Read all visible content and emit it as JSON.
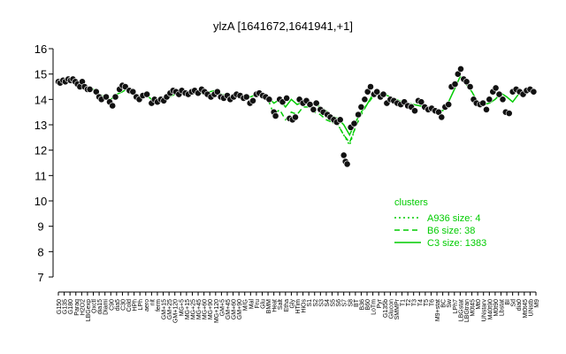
{
  "chart_data": {
    "type": "scatter",
    "title": "ylzA [1641672,1641941,+1]",
    "ylim": [
      7,
      16
    ],
    "yticks": [
      7,
      8,
      9,
      10,
      11,
      12,
      13,
      14,
      15,
      16
    ],
    "grid": false,
    "legend": {
      "title": "clusters",
      "placement": "right",
      "entries": [
        {
          "label": "A936 size: 4",
          "style": "dotted",
          "color": "#00cc00"
        },
        {
          "label": "B6 size: 38",
          "style": "dashed",
          "color": "#00cc00"
        },
        {
          "label": "C3 size: 1383",
          "style": "solid",
          "color": "#00cc00"
        }
      ]
    },
    "x_labels": [
      "G150",
      "G135",
      "G180",
      "Paraq",
      "H2O2",
      "LBGexp",
      "Oxctl",
      "dia15",
      "Diami",
      "C90",
      "dia5",
      "C30",
      "Cold",
      "HPh",
      "LPh",
      "aero",
      "nit",
      "ferm",
      "GM+15",
      "GM+25",
      "GM+120",
      "MG+5",
      "MG+15",
      "MG+25",
      "MG+45",
      "MG+60",
      "MG+90",
      "MG+120",
      "GM+5",
      "GM+45",
      "GM+60",
      "GM+90",
      "M/G",
      "Mal",
      "Fru",
      "Glu",
      "BMM",
      "Heat",
      "Salt",
      "Etha",
      "Gly",
      "HTim",
      "HiOs",
      "S1",
      "S2",
      "S3",
      "S4",
      "S5",
      "S6",
      "S7",
      "S8",
      "BT",
      "B36",
      "B60",
      "LoTm",
      "Pyr",
      "G135b",
      "Glucon",
      "SMMPr",
      "T1",
      "T2",
      "T3",
      "T4",
      "T5",
      "T6",
      "M9+stat",
      "BC",
      "Sw",
      "LPh7",
      "LBGstat",
      "LBGtran",
      "M0t45",
      "Mt0",
      "UNstarv",
      "M40t90",
      "M0t90",
      "Lbstat",
      "BI",
      "Sd",
      "dia0",
      "Mt0t45",
      "UNstb",
      "M9"
    ],
    "series": [
      {
        "cluster": "C3",
        "x": [
          0,
          1,
          2,
          3,
          4,
          5,
          6,
          7,
          8,
          9,
          10,
          11,
          12,
          13,
          14,
          15,
          16,
          17,
          18,
          19,
          20,
          21,
          22,
          23,
          24,
          25,
          26,
          27,
          28,
          29,
          30,
          31,
          32,
          33,
          34,
          35,
          36,
          37,
          38,
          39,
          40,
          41,
          42,
          43,
          44,
          45,
          46,
          47,
          48,
          49,
          50,
          51,
          52,
          53,
          54,
          55,
          56,
          57,
          58,
          59,
          60,
          61,
          62,
          63,
          64,
          65,
          66,
          67,
          68,
          69,
          70,
          71,
          72,
          73,
          74,
          75,
          76,
          77,
          78,
          79,
          80,
          81,
          82
        ],
        "y": [
          14.7,
          14.7,
          14.8,
          14.75,
          14.6,
          14.5,
          14.4,
          14.2,
          14.1,
          14.0,
          14.2,
          14.3,
          14.45,
          14.2,
          14.1,
          14.2,
          14.0,
          13.9,
          14.0,
          14.1,
          14.2,
          14.25,
          14.3,
          14.2,
          14.3,
          14.2,
          14.3,
          14.35,
          14.2,
          14.15,
          14.1,
          14.2,
          14.15,
          14.1,
          14.2,
          14.2,
          14.1,
          13.85,
          14.0,
          13.7,
          14.0,
          13.8,
          13.9,
          13.9,
          13.8,
          13.7,
          13.55,
          13.35,
          13.25,
          13.0,
          12.6,
          13.1,
          13.5,
          13.8,
          14.2,
          14.25,
          14.2,
          14.1,
          14.0,
          13.9,
          13.85,
          13.8,
          13.75,
          13.7,
          13.7,
          13.6,
          13.55,
          13.9,
          14.4,
          14.9,
          14.6,
          14.3,
          13.9,
          13.8,
          13.85,
          14.0,
          14.25,
          14.1,
          13.9,
          14.2,
          14.3,
          14.3,
          14.35
        ]
      },
      {
        "cluster": "B6",
        "x": [
          36,
          37,
          38,
          39,
          40,
          41,
          42,
          43,
          44,
          45,
          46,
          47,
          48,
          49,
          50,
          51,
          52,
          53,
          54
        ],
        "y": [
          14.0,
          13.4,
          13.6,
          13.2,
          13.5,
          13.4,
          13.7,
          13.7,
          13.5,
          13.4,
          13.2,
          13.1,
          13.0,
          12.6,
          12.3,
          12.9,
          13.4,
          13.8,
          14.1
        ]
      },
      {
        "cluster": "A936",
        "x": [
          47,
          48,
          49,
          50,
          51
        ],
        "y": [
          13.1,
          13.0,
          12.6,
          12.2,
          12.9
        ]
      }
    ],
    "points": [
      [
        0,
        14.7
      ],
      [
        0.3,
        14.65
      ],
      [
        0.8,
        14.75
      ],
      [
        1.2,
        14.7
      ],
      [
        1.7,
        14.8
      ],
      [
        2.1,
        14.75
      ],
      [
        2.5,
        14.8
      ],
      [
        2.9,
        14.7
      ],
      [
        3.3,
        14.6
      ],
      [
        3.7,
        14.5
      ],
      [
        4.1,
        14.7
      ],
      [
        4.5,
        14.5
      ],
      [
        5.0,
        14.4
      ],
      [
        5.4,
        14.4
      ],
      [
        6.5,
        14.3
      ],
      [
        7.0,
        14.1
      ],
      [
        7.4,
        14.0
      ],
      [
        8.2,
        14.1
      ],
      [
        8.8,
        13.9
      ],
      [
        9.3,
        13.75
      ],
      [
        9.8,
        14.1
      ],
      [
        10.5,
        14.4
      ],
      [
        11.0,
        14.55
      ],
      [
        11.5,
        14.5
      ],
      [
        12.2,
        14.35
      ],
      [
        12.8,
        14.3
      ],
      [
        13.4,
        14.1
      ],
      [
        13.9,
        14.0
      ],
      [
        14.5,
        14.15
      ],
      [
        15.2,
        14.2
      ],
      [
        16.0,
        13.85
      ],
      [
        16.5,
        14.0
      ],
      [
        17.0,
        13.9
      ],
      [
        17.6,
        14.0
      ],
      [
        18.1,
        13.95
      ],
      [
        18.6,
        14.1
      ],
      [
        19.2,
        14.25
      ],
      [
        19.7,
        14.35
      ],
      [
        20.2,
        14.3
      ],
      [
        20.7,
        14.2
      ],
      [
        21.2,
        14.35
      ],
      [
        21.8,
        14.25
      ],
      [
        22.3,
        14.2
      ],
      [
        22.9,
        14.3
      ],
      [
        23.4,
        14.35
      ],
      [
        24.0,
        14.25
      ],
      [
        24.6,
        14.4
      ],
      [
        25.1,
        14.3
      ],
      [
        25.6,
        14.2
      ],
      [
        26.2,
        14.1
      ],
      [
        26.8,
        14.2
      ],
      [
        27.3,
        14.3
      ],
      [
        27.9,
        14.1
      ],
      [
        28.4,
        14.05
      ],
      [
        29.0,
        14.15
      ],
      [
        29.5,
        14.0
      ],
      [
        30.1,
        14.1
      ],
      [
        30.6,
        14.2
      ],
      [
        31.2,
        14.15
      ],
      [
        31.8,
        14.05
      ],
      [
        32.3,
        14.1
      ],
      [
        32.9,
        13.85
      ],
      [
        33.4,
        13.95
      ],
      [
        34.0,
        14.2
      ],
      [
        34.5,
        14.25
      ],
      [
        35.1,
        14.15
      ],
      [
        35.6,
        14.1
      ],
      [
        36.2,
        14.0
      ],
      [
        37.0,
        13.5
      ],
      [
        37.3,
        13.35
      ],
      [
        38.0,
        14.0
      ],
      [
        38.5,
        13.9
      ],
      [
        39.2,
        14.05
      ],
      [
        39.7,
        13.25
      ],
      [
        40.2,
        13.2
      ],
      [
        40.7,
        13.3
      ],
      [
        41.4,
        14.0
      ],
      [
        42.0,
        13.85
      ],
      [
        42.6,
        13.95
      ],
      [
        43.2,
        13.8
      ],
      [
        43.8,
        13.6
      ],
      [
        44.3,
        13.85
      ],
      [
        45.0,
        13.6
      ],
      [
        45.5,
        13.5
      ],
      [
        46.2,
        13.4
      ],
      [
        46.7,
        13.3
      ],
      [
        47.3,
        13.2
      ],
      [
        47.8,
        13.1
      ],
      [
        48.4,
        13.2
      ],
      [
        49.0,
        11.8
      ],
      [
        49.3,
        11.55
      ],
      [
        49.6,
        11.45
      ],
      [
        50.2,
        12.9
      ],
      [
        50.8,
        13.05
      ],
      [
        51.5,
        13.4
      ],
      [
        52.0,
        13.7
      ],
      [
        52.6,
        14.0
      ],
      [
        53.1,
        14.3
      ],
      [
        53.6,
        14.5
      ],
      [
        54.2,
        14.2
      ],
      [
        54.7,
        14.3
      ],
      [
        55.3,
        14.1
      ],
      [
        55.8,
        14.2
      ],
      [
        56.4,
        13.85
      ],
      [
        57.0,
        14.0
      ],
      [
        57.6,
        13.95
      ],
      [
        58.2,
        13.85
      ],
      [
        58.8,
        13.8
      ],
      [
        59.4,
        13.9
      ],
      [
        60.0,
        13.75
      ],
      [
        60.6,
        13.7
      ],
      [
        61.2,
        13.55
      ],
      [
        61.8,
        13.95
      ],
      [
        62.3,
        13.9
      ],
      [
        62.9,
        13.7
      ],
      [
        63.5,
        13.6
      ],
      [
        64.1,
        13.65
      ],
      [
        64.7,
        13.55
      ],
      [
        65.3,
        13.5
      ],
      [
        65.8,
        13.3
      ],
      [
        66.4,
        13.7
      ],
      [
        67.0,
        13.8
      ],
      [
        67.5,
        14.5
      ],
      [
        68.1,
        14.6
      ],
      [
        68.6,
        15.0
      ],
      [
        69.1,
        15.2
      ],
      [
        69.6,
        14.8
      ],
      [
        70.1,
        14.7
      ],
      [
        70.7,
        14.5
      ],
      [
        71.3,
        14.0
      ],
      [
        71.8,
        13.85
      ],
      [
        72.4,
        13.8
      ],
      [
        72.9,
        13.85
      ],
      [
        73.5,
        13.6
      ],
      [
        74.0,
        14.0
      ],
      [
        74.6,
        14.3
      ],
      [
        75.1,
        14.45
      ],
      [
        75.7,
        14.2
      ],
      [
        76.3,
        14.0
      ],
      [
        76.8,
        13.5
      ],
      [
        77.4,
        13.45
      ],
      [
        78.0,
        14.3
      ],
      [
        78.6,
        14.4
      ],
      [
        79.2,
        14.3
      ],
      [
        79.8,
        14.2
      ],
      [
        80.4,
        14.35
      ],
      [
        81.0,
        14.4
      ],
      [
        81.6,
        14.3
      ]
    ]
  }
}
